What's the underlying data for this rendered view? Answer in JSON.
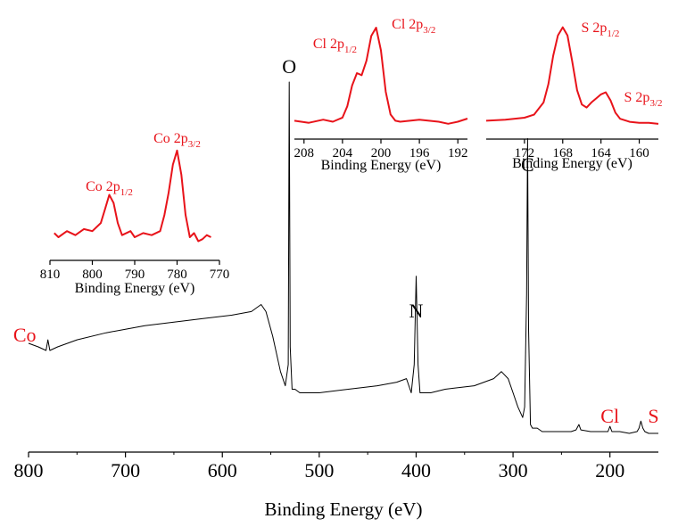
{
  "colors": {
    "axis": "#000000",
    "main_trace": "#000000",
    "inset_trace": "#e8131a",
    "element_label": "#e8131a"
  },
  "chart_data": [
    {
      "type": "line",
      "id": "main",
      "xlabel": "Binding Energy (eV)",
      "ylabel": "",
      "x_reversed": true,
      "xlim": [
        800,
        150
      ],
      "y_axis_visible": false,
      "xticks": [
        800,
        700,
        600,
        500,
        400,
        300,
        200
      ],
      "tick_labels": [
        "800",
        "700",
        "600",
        "500",
        "400",
        "300",
        "200"
      ],
      "peak_labels": [
        {
          "text": "O",
          "x": 531,
          "color": "#000000"
        },
        {
          "text": "N",
          "x": 400,
          "color": "#000000"
        },
        {
          "text": "C",
          "x": 285,
          "color": "#000000"
        },
        {
          "text": "Co",
          "x": 780,
          "color": "#e8131a"
        },
        {
          "text": "Cl",
          "x": 200,
          "color": "#e8131a"
        },
        {
          "text": "S",
          "x": 168,
          "color": "#e8131a"
        }
      ],
      "series": [
        {
          "color": "#000000",
          "x": [
            800,
            790,
            782,
            780,
            778,
            770,
            750,
            720,
            700,
            680,
            650,
            620,
            590,
            570,
            560,
            555,
            548,
            540,
            535,
            532,
            531,
            530,
            528,
            525,
            520,
            500,
            470,
            440,
            420,
            410,
            405,
            402,
            400,
            398,
            396,
            392,
            385,
            370,
            340,
            320,
            312,
            305,
            300,
            295,
            290,
            288,
            286,
            285,
            284,
            282,
            280,
            275,
            270,
            250,
            240,
            235,
            232,
            230,
            220,
            210,
            202,
            200,
            198,
            190,
            180,
            172,
            170,
            168,
            166,
            164,
            160,
            155,
            150
          ],
          "y": [
            0.26,
            0.25,
            0.24,
            0.27,
            0.24,
            0.25,
            0.27,
            0.29,
            0.3,
            0.31,
            0.32,
            0.33,
            0.34,
            0.35,
            0.37,
            0.35,
            0.28,
            0.18,
            0.14,
            0.2,
            1.0,
            0.25,
            0.13,
            0.13,
            0.12,
            0.12,
            0.13,
            0.14,
            0.15,
            0.16,
            0.12,
            0.2,
            0.45,
            0.2,
            0.12,
            0.12,
            0.12,
            0.13,
            0.14,
            0.16,
            0.18,
            0.16,
            0.12,
            0.08,
            0.05,
            0.08,
            0.4,
            0.84,
            0.3,
            0.03,
            0.02,
            0.02,
            0.01,
            0.01,
            0.01,
            0.015,
            0.03,
            0.015,
            0.01,
            0.01,
            0.01,
            0.025,
            0.01,
            0.01,
            0.005,
            0.01,
            0.02,
            0.04,
            0.02,
            0.01,
            0.005,
            0.005,
            0.005
          ]
        }
      ]
    },
    {
      "type": "line",
      "id": "inset-co",
      "xlabel": "Binding Energy (eV)",
      "x_reversed": true,
      "xlim": [
        810,
        770
      ],
      "xticks": [
        810,
        800,
        790,
        780,
        770
      ],
      "tick_labels": [
        "810",
        "800",
        "790",
        "780",
        "770"
      ],
      "peak_labels": [
        {
          "text": "Co 2p",
          "sub": "3/2",
          "x": 780
        },
        {
          "text": "Co 2p",
          "sub": "1/2",
          "x": 796
        }
      ],
      "series": [
        {
          "color": "#e8131a",
          "x": [
            809,
            808,
            806,
            804,
            802,
            800,
            798,
            797,
            796,
            795,
            794,
            793,
            791,
            790,
            788,
            786,
            784,
            783,
            782,
            781,
            780,
            779,
            778,
            777,
            776,
            775,
            774,
            773,
            772
          ],
          "y": [
            0.12,
            0.08,
            0.14,
            0.1,
            0.16,
            0.14,
            0.22,
            0.36,
            0.5,
            0.42,
            0.22,
            0.1,
            0.14,
            0.08,
            0.12,
            0.1,
            0.14,
            0.3,
            0.52,
            0.8,
            0.94,
            0.7,
            0.3,
            0.08,
            0.12,
            0.04,
            0.06,
            0.1,
            0.08
          ]
        }
      ]
    },
    {
      "type": "line",
      "id": "inset-cl",
      "xlabel": "Binding Energy (eV)",
      "x_reversed": true,
      "xlim": [
        209,
        191
      ],
      "xticks": [
        208,
        204,
        200,
        196,
        192
      ],
      "tick_labels": [
        "208",
        "204",
        "200",
        "196",
        "192"
      ],
      "peak_labels": [
        {
          "text": "Cl 2p",
          "sub": "3/2",
          "x": 200.3
        },
        {
          "text": "Cl 2p",
          "sub": "1/2",
          "x": 202
        }
      ],
      "series": [
        {
          "color": "#e8131a",
          "x": [
            209,
            207.5,
            206,
            205,
            204,
            203.5,
            203,
            202.5,
            202,
            201.5,
            201,
            200.5,
            200,
            199.5,
            199,
            198.5,
            198,
            196,
            194,
            193,
            192,
            191
          ],
          "y": [
            0.04,
            0.02,
            0.05,
            0.03,
            0.07,
            0.18,
            0.38,
            0.5,
            0.48,
            0.62,
            0.86,
            0.94,
            0.72,
            0.32,
            0.1,
            0.04,
            0.03,
            0.05,
            0.03,
            0.01,
            0.03,
            0.06
          ]
        }
      ]
    },
    {
      "type": "line",
      "id": "inset-s",
      "xlabel": "Binding Energy (eV)",
      "x_reversed": true,
      "xlim": [
        176,
        158
      ],
      "xticks": [
        172,
        168,
        164,
        160
      ],
      "tick_labels": [
        "172",
        "168",
        "164",
        "160"
      ],
      "peak_labels": [
        {
          "text": "S 2p",
          "sub": "1/2",
          "x": 167.8
        },
        {
          "text": "S 2p",
          "sub": "3/2",
          "x": 163.5
        }
      ],
      "series": [
        {
          "color": "#e8131a",
          "x": [
            176,
            174,
            172,
            171,
            170,
            169.5,
            169,
            168.5,
            168,
            167.5,
            167,
            166.5,
            166,
            165.5,
            165,
            164.5,
            164,
            163.5,
            163,
            162.5,
            162,
            161,
            160,
            159,
            158
          ],
          "y": [
            0.04,
            0.05,
            0.07,
            0.1,
            0.22,
            0.4,
            0.68,
            0.88,
            0.96,
            0.88,
            0.62,
            0.34,
            0.2,
            0.17,
            0.22,
            0.26,
            0.3,
            0.32,
            0.24,
            0.12,
            0.06,
            0.03,
            0.02,
            0.02,
            0.01
          ]
        }
      ]
    }
  ]
}
